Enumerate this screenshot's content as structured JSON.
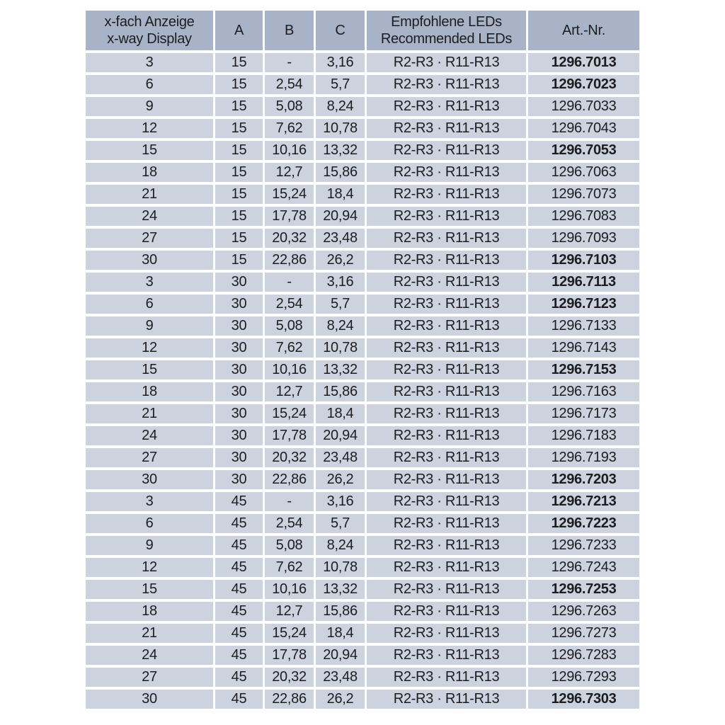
{
  "colors": {
    "page_bg": "#ffffff",
    "header_bg": "#a8b3c7",
    "row_bg": "#ccd3df",
    "text": "#1d1d1f"
  },
  "table": {
    "headers": [
      {
        "line1": "x-fach Anzeige",
        "line2": "x-way Display"
      },
      {
        "line1": "A",
        "line2": ""
      },
      {
        "line1": "B",
        "line2": ""
      },
      {
        "line1": "C",
        "line2": ""
      },
      {
        "line1": "Empfohlene LEDs",
        "line2": "Recommended LEDs"
      },
      {
        "line1": "Art.-Nr.",
        "line2": ""
      }
    ],
    "rows": [
      {
        "display": "3",
        "a": "15",
        "b": "-",
        "c": "3,16",
        "leds": "R2-R3 · R11-R13",
        "art": "1296.7013",
        "bold": true
      },
      {
        "display": "6",
        "a": "15",
        "b": "2,54",
        "c": "5,7",
        "leds": "R2-R3 · R11-R13",
        "art": "1296.7023",
        "bold": true
      },
      {
        "display": "9",
        "a": "15",
        "b": "5,08",
        "c": "8,24",
        "leds": "R2-R3 · R11-R13",
        "art": "1296.7033",
        "bold": false
      },
      {
        "display": "12",
        "a": "15",
        "b": "7,62",
        "c": "10,78",
        "leds": "R2-R3 · R11-R13",
        "art": "1296.7043",
        "bold": false
      },
      {
        "display": "15",
        "a": "15",
        "b": "10,16",
        "c": "13,32",
        "leds": "R2-R3 · R11-R13",
        "art": "1296.7053",
        "bold": true
      },
      {
        "display": "18",
        "a": "15",
        "b": "12,7",
        "c": "15,86",
        "leds": "R2-R3 · R11-R13",
        "art": "1296.7063",
        "bold": false
      },
      {
        "display": "21",
        "a": "15",
        "b": "15,24",
        "c": "18,4",
        "leds": "R2-R3 · R11-R13",
        "art": "1296.7073",
        "bold": false
      },
      {
        "display": "24",
        "a": "15",
        "b": "17,78",
        "c": "20,94",
        "leds": "R2-R3 · R11-R13",
        "art": "1296.7083",
        "bold": false
      },
      {
        "display": "27",
        "a": "15",
        "b": "20,32",
        "c": "23,48",
        "leds": "R2-R3 · R11-R13",
        "art": "1296.7093",
        "bold": false
      },
      {
        "display": "30",
        "a": "15",
        "b": "22,86",
        "c": "26,2",
        "leds": "R2-R3 · R11-R13",
        "art": "1296.7103",
        "bold": true
      },
      {
        "display": "3",
        "a": "30",
        "b": "-",
        "c": "3,16",
        "leds": "R2-R3 · R11-R13",
        "art": "1296.7113",
        "bold": true
      },
      {
        "display": "6",
        "a": "30",
        "b": "2,54",
        "c": "5,7",
        "leds": "R2-R3 · R11-R13",
        "art": "1296.7123",
        "bold": true
      },
      {
        "display": "9",
        "a": "30",
        "b": "5,08",
        "c": "8,24",
        "leds": "R2-R3 · R11-R13",
        "art": "1296.7133",
        "bold": false
      },
      {
        "display": "12",
        "a": "30",
        "b": "7,62",
        "c": "10,78",
        "leds": "R2-R3 · R11-R13",
        "art": "1296.7143",
        "bold": false
      },
      {
        "display": "15",
        "a": "30",
        "b": "10,16",
        "c": "13,32",
        "leds": "R2-R3 · R11-R13",
        "art": "1296.7153",
        "bold": true
      },
      {
        "display": "18",
        "a": "30",
        "b": "12,7",
        "c": "15,86",
        "leds": "R2-R3 · R11-R13",
        "art": "1296.7163",
        "bold": false
      },
      {
        "display": "21",
        "a": "30",
        "b": "15,24",
        "c": "18,4",
        "leds": "R2-R3 · R11-R13",
        "art": "1296.7173",
        "bold": false
      },
      {
        "display": "24",
        "a": "30",
        "b": "17,78",
        "c": "20,94",
        "leds": "R2-R3 · R11-R13",
        "art": "1296.7183",
        "bold": false
      },
      {
        "display": "27",
        "a": "30",
        "b": "20,32",
        "c": "23,48",
        "leds": "R2-R3 · R11-R13",
        "art": "1296.7193",
        "bold": false
      },
      {
        "display": "30",
        "a": "30",
        "b": "22,86",
        "c": "26,2",
        "leds": "R2-R3 · R11-R13",
        "art": "1296.7203",
        "bold": true
      },
      {
        "display": "3",
        "a": "45",
        "b": "-",
        "c": "3,16",
        "leds": "R2-R3 · R11-R13",
        "art": "1296.7213",
        "bold": true
      },
      {
        "display": "6",
        "a": "45",
        "b": "2,54",
        "c": "5,7",
        "leds": "R2-R3 · R11-R13",
        "art": "1296.7223",
        "bold": true
      },
      {
        "display": "9",
        "a": "45",
        "b": "5,08",
        "c": "8,24",
        "leds": "R2-R3 · R11-R13",
        "art": "1296.7233",
        "bold": false
      },
      {
        "display": "12",
        "a": "45",
        "b": "7,62",
        "c": "10,78",
        "leds": "R2-R3 · R11-R13",
        "art": "1296.7243",
        "bold": false
      },
      {
        "display": "15",
        "a": "45",
        "b": "10,16",
        "c": "13,32",
        "leds": "R2-R3 · R11-R13",
        "art": "1296.7253",
        "bold": true
      },
      {
        "display": "18",
        "a": "45",
        "b": "12,7",
        "c": "15,86",
        "leds": "R2-R3 · R11-R13",
        "art": "1296.7263",
        "bold": false
      },
      {
        "display": "21",
        "a": "45",
        "b": "15,24",
        "c": "18,4",
        "leds": "R2-R3 · R11-R13",
        "art": "1296.7273",
        "bold": false
      },
      {
        "display": "24",
        "a": "45",
        "b": "17,78",
        "c": "20,94",
        "leds": "R2-R3 · R11-R13",
        "art": "1296.7283",
        "bold": false
      },
      {
        "display": "27",
        "a": "45",
        "b": "20,32",
        "c": "23,48",
        "leds": "R2-R3 · R11-R13",
        "art": "1296.7293",
        "bold": false
      },
      {
        "display": "30",
        "a": "45",
        "b": "22,86",
        "c": "26,2",
        "leds": "R2-R3 · R11-R13",
        "art": "1296.7303",
        "bold": true
      }
    ]
  }
}
